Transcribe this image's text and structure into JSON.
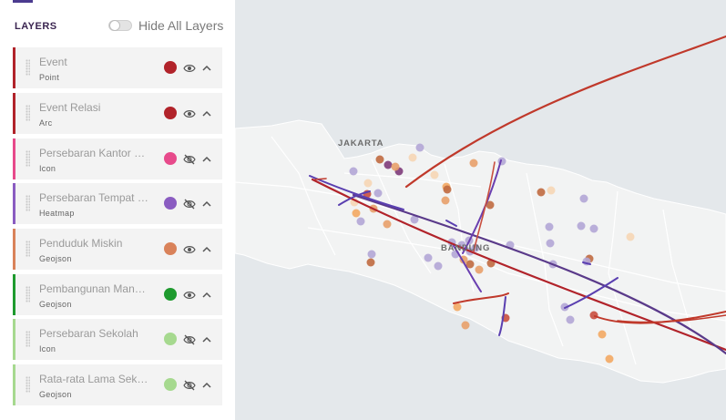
{
  "panel": {
    "title": "LAYERS",
    "hide_all_label": "Hide All Layers",
    "hide_all_on": false
  },
  "layers": [
    {
      "name": "Event",
      "type": "Point",
      "color": "#b1232a",
      "visible": true
    },
    {
      "name": "Event Relasi",
      "type": "Arc",
      "color": "#b1232a",
      "visible": true
    },
    {
      "name": "Persebaran Kantor Pos",
      "type": "Icon",
      "color": "#e74a8b",
      "visible": false
    },
    {
      "name": "Persebaran Tempat Ibadah",
      "type": "Heatmap",
      "color": "#8a5cc1",
      "visible": false
    },
    {
      "name": "Penduduk Miskin",
      "type": "Geojson",
      "color": "#d9825a",
      "visible": true
    },
    {
      "name": "Pembangunan Manusia",
      "type": "Geojson",
      "color": "#1e9a2e",
      "visible": true
    },
    {
      "name": "Persebaran Sekolah",
      "type": "Icon",
      "color": "#a6d98f",
      "visible": false
    },
    {
      "name": "Rata-rata Lama Sekolah",
      "type": "Geojson",
      "color": "#a6d98f",
      "visible": false
    }
  ],
  "map": {
    "city_labels": [
      "JAKARTA",
      "BANDUNG"
    ],
    "sea_color": "#e4e8eb",
    "land_color": "#f2f3f3"
  }
}
